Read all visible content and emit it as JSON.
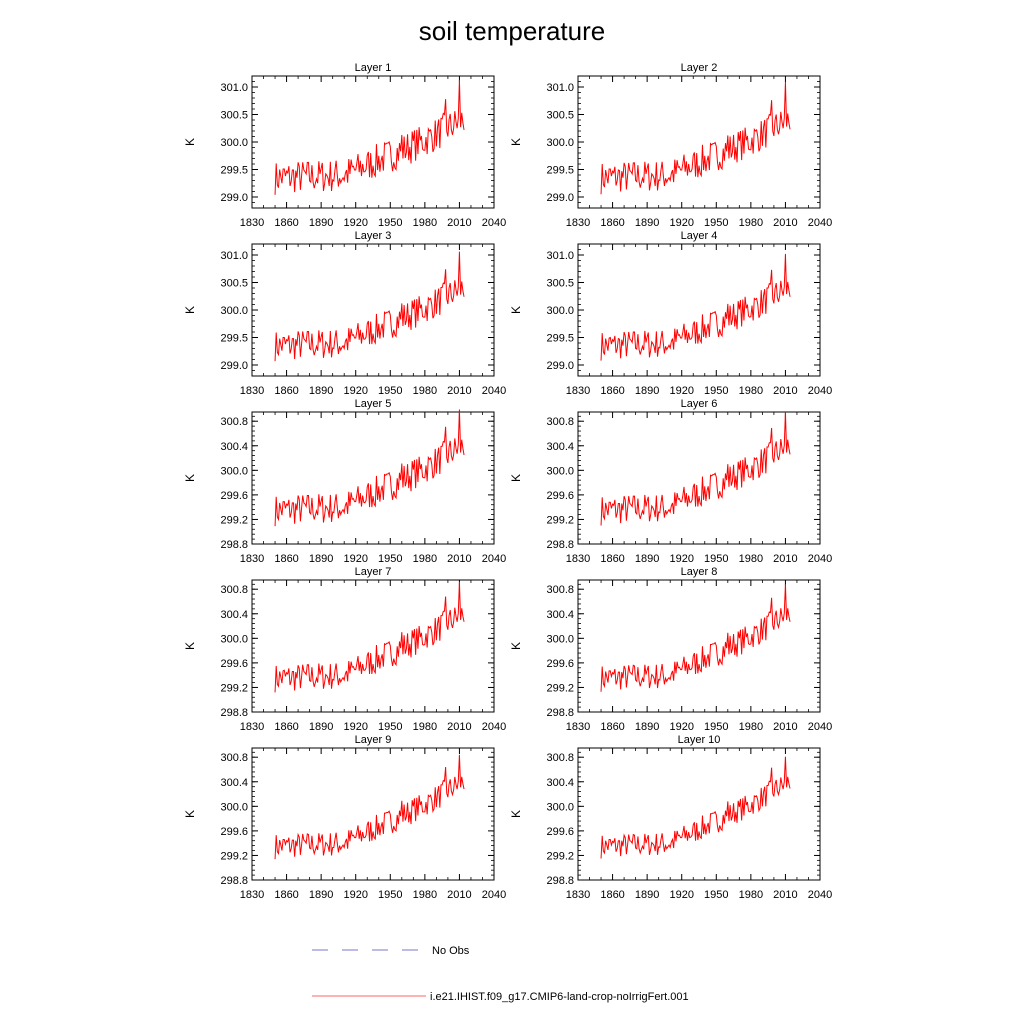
{
  "figure": {
    "title": "soil temperature",
    "legend": [
      {
        "label": "No Obs",
        "color": "#7777cc",
        "style": "dashed"
      },
      {
        "label": "i.e21.IHIST.f09_g17.CMIP6-land-crop-noIrrigFert.001",
        "color": "#ff6666",
        "style": "solid"
      }
    ]
  },
  "chart_data": [
    {
      "type": "line",
      "title": "Layer 1",
      "ylabel": "K",
      "xlim": [
        1830,
        2040
      ],
      "ylim": [
        298.8,
        301.2
      ],
      "xticks": [
        "1830",
        "1860",
        "1890",
        "1920",
        "1950",
        "1980",
        "2010",
        "2040"
      ],
      "yticks": [
        "299.0",
        "299.5",
        "300.0",
        "300.5",
        "301.0"
      ],
      "ytick_values": [
        299.0,
        299.5,
        300.0,
        300.5,
        301.0
      ],
      "series": [
        {
          "color": "#ff0000",
          "x_start": 1850,
          "x_end": 2014,
          "values": []
        }
      ]
    },
    {
      "type": "line",
      "title": "Layer 2",
      "ylabel": "K",
      "xlim": [
        1830,
        2040
      ],
      "ylim": [
        298.8,
        301.2
      ],
      "xticks": [
        "1830",
        "1860",
        "1890",
        "1920",
        "1950",
        "1980",
        "2010",
        "2040"
      ],
      "yticks": [
        "299.0",
        "299.5",
        "300.0",
        "300.5",
        "301.0"
      ],
      "ytick_values": [
        299.0,
        299.5,
        300.0,
        300.5,
        301.0
      ],
      "series": [
        {
          "color": "#ff0000",
          "x_start": 1850,
          "x_end": 2014,
          "values": []
        }
      ]
    },
    {
      "type": "line",
      "title": "Layer 3",
      "ylabel": "K",
      "xlim": [
        1830,
        2040
      ],
      "ylim": [
        298.8,
        301.2
      ],
      "xticks": [
        "1830",
        "1860",
        "1890",
        "1920",
        "1950",
        "1980",
        "2010",
        "2040"
      ],
      "yticks": [
        "299.0",
        "299.5",
        "300.0",
        "300.5",
        "301.0"
      ],
      "ytick_values": [
        299.0,
        299.5,
        300.0,
        300.5,
        301.0
      ],
      "series": [
        {
          "color": "#ff0000",
          "x_start": 1850,
          "x_end": 2014,
          "values": []
        }
      ]
    },
    {
      "type": "line",
      "title": "Layer 4",
      "ylabel": "K",
      "xlim": [
        1830,
        2040
      ],
      "ylim": [
        298.8,
        301.2
      ],
      "xticks": [
        "1830",
        "1860",
        "1890",
        "1920",
        "1950",
        "1980",
        "2010",
        "2040"
      ],
      "yticks": [
        "299.0",
        "299.5",
        "300.0",
        "300.5",
        "301.0"
      ],
      "ytick_values": [
        299.0,
        299.5,
        300.0,
        300.5,
        301.0
      ],
      "series": [
        {
          "color": "#ff0000",
          "x_start": 1850,
          "x_end": 2014,
          "values": []
        }
      ]
    },
    {
      "type": "line",
      "title": "Layer 5",
      "ylabel": "K",
      "xlim": [
        1830,
        2040
      ],
      "ylim": [
        298.8,
        300.95
      ],
      "xticks": [
        "1830",
        "1860",
        "1890",
        "1920",
        "1950",
        "1980",
        "2010",
        "2040"
      ],
      "yticks": [
        "298.8",
        "299.2",
        "299.6",
        "300.0",
        "300.4",
        "300.8"
      ],
      "ytick_values": [
        298.8,
        299.2,
        299.6,
        300.0,
        300.4,
        300.8
      ],
      "series": [
        {
          "color": "#ff0000",
          "x_start": 1850,
          "x_end": 2014,
          "values": []
        }
      ]
    },
    {
      "type": "line",
      "title": "Layer 6",
      "ylabel": "K",
      "xlim": [
        1830,
        2040
      ],
      "ylim": [
        298.8,
        300.95
      ],
      "xticks": [
        "1830",
        "1860",
        "1890",
        "1920",
        "1950",
        "1980",
        "2010",
        "2040"
      ],
      "yticks": [
        "298.8",
        "299.2",
        "299.6",
        "300.0",
        "300.4",
        "300.8"
      ],
      "ytick_values": [
        298.8,
        299.2,
        299.6,
        300.0,
        300.4,
        300.8
      ],
      "series": [
        {
          "color": "#ff0000",
          "x_start": 1850,
          "x_end": 2014,
          "values": []
        }
      ]
    },
    {
      "type": "line",
      "title": "Layer 7",
      "ylabel": "K",
      "xlim": [
        1830,
        2040
      ],
      "ylim": [
        298.8,
        300.95
      ],
      "xticks": [
        "1830",
        "1860",
        "1890",
        "1920",
        "1950",
        "1980",
        "2010",
        "2040"
      ],
      "yticks": [
        "298.8",
        "299.2",
        "299.6",
        "300.0",
        "300.4",
        "300.8"
      ],
      "ytick_values": [
        298.8,
        299.2,
        299.6,
        300.0,
        300.4,
        300.8
      ],
      "series": [
        {
          "color": "#ff0000",
          "x_start": 1850,
          "x_end": 2014,
          "values": []
        }
      ]
    },
    {
      "type": "line",
      "title": "Layer 8",
      "ylabel": "K",
      "xlim": [
        1830,
        2040
      ],
      "ylim": [
        298.8,
        300.95
      ],
      "xticks": [
        "1830",
        "1860",
        "1890",
        "1920",
        "1950",
        "1980",
        "2010",
        "2040"
      ],
      "yticks": [
        "298.8",
        "299.2",
        "299.6",
        "300.0",
        "300.4",
        "300.8"
      ],
      "ytick_values": [
        298.8,
        299.2,
        299.6,
        300.0,
        300.4,
        300.8
      ],
      "series": [
        {
          "color": "#ff0000",
          "x_start": 1850,
          "x_end": 2014,
          "values": []
        }
      ]
    },
    {
      "type": "line",
      "title": "Layer 9",
      "ylabel": "K",
      "xlim": [
        1830,
        2040
      ],
      "ylim": [
        298.8,
        300.95
      ],
      "xticks": [
        "1830",
        "1860",
        "1890",
        "1920",
        "1950",
        "1980",
        "2010",
        "2040"
      ],
      "yticks": [
        "298.8",
        "299.2",
        "299.6",
        "300.0",
        "300.4",
        "300.8"
      ],
      "ytick_values": [
        298.8,
        299.2,
        299.6,
        300.0,
        300.4,
        300.8
      ],
      "series": [
        {
          "color": "#ff0000",
          "x_start": 1850,
          "x_end": 2014,
          "values": []
        }
      ]
    },
    {
      "type": "line",
      "title": "Layer 10",
      "ylabel": "K",
      "xlim": [
        1830,
        2040
      ],
      "ylim": [
        298.8,
        300.95
      ],
      "xticks": [
        "1830",
        "1860",
        "1890",
        "1920",
        "1950",
        "1980",
        "2010",
        "2040"
      ],
      "yticks": [
        "298.8",
        "299.2",
        "299.6",
        "300.0",
        "300.4",
        "300.8"
      ],
      "ytick_values": [
        298.8,
        299.2,
        299.6,
        300.0,
        300.4,
        300.8
      ],
      "series": [
        {
          "color": "#ff0000",
          "x_start": 1850,
          "x_end": 2014,
          "values": []
        }
      ]
    }
  ]
}
